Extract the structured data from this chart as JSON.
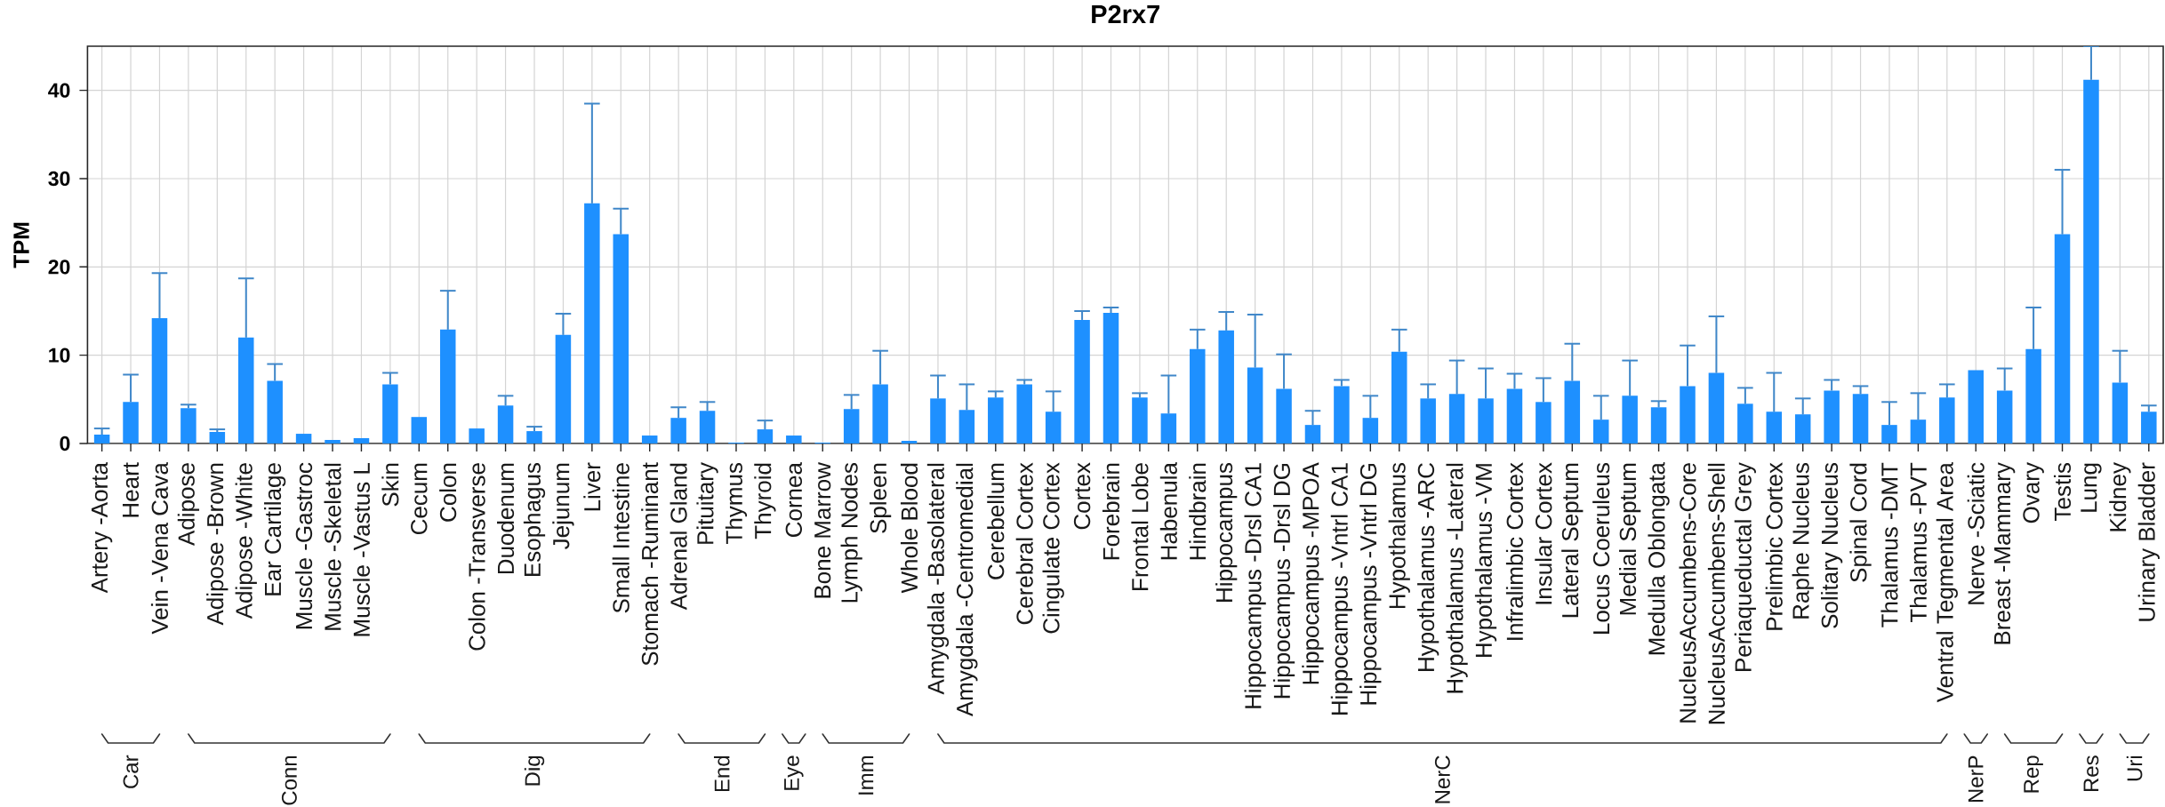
{
  "chart_data": {
    "type": "bar",
    "title": "P2rx7",
    "ylabel": "TPM",
    "categories": [
      "Artery -Aorta",
      "Heart",
      "Vein -Vena Cava",
      "Adipose",
      "Adipose -Brown",
      "Adipose -White",
      "Ear Cartilage",
      "Muscle -Gastroc",
      "Muscle -Skeletal",
      "Muscle -Vastus L",
      "Skin",
      "Cecum",
      "Colon",
      "Colon -Transverse",
      "Duodenum",
      "Esophagus",
      "Jejunum",
      "Liver",
      "Small Intestine",
      "Stomach -Ruminant",
      "Adrenal Gland",
      "Pituitary",
      "Thymus",
      "Thyroid",
      "Cornea",
      "Bone Marrow",
      "Lymph Nodes",
      "Spleen",
      "Whole Blood",
      "Amygdala -Basolateral",
      "Amygdala -Centromedial",
      "Cerebellum",
      "Cerebral Cortex",
      "Cingulate Cortex",
      "Cortex",
      "Forebrain",
      "Frontal Lobe",
      "Habenula",
      "Hindbrain",
      "Hippocampus",
      "Hippocampus -Drsl CA1",
      "Hippocampus -Drsl DG",
      "Hippocampus -MPOA",
      "Hippocampus -Vntrl CA1",
      "Hippocampus -Vntrl DG",
      "Hypothalamus",
      "Hypothalamus -ARC",
      "Hypothalamus -Lateral",
      "Hypothalamus -VM",
      "Infralimbic Cortex",
      "Insular Cortex",
      "Lateral Septum",
      "Locus Coeruleus",
      "Medial Septum",
      "Medulla Oblongata",
      "NucleusAccumbens-Core",
      "NucleusAccumbens-Shell",
      "Periaqueductal Grey",
      "Prelimbic Cortex",
      "Raphe Nucleus",
      "Solitary Nucleus",
      "Spinal Cord",
      "Thalamus -DMT",
      "Thalamus -PVT",
      "Ventral Tegmental Area",
      "Nerve -Sciatic",
      "Breast -Mammary",
      "Ovary",
      "Testis",
      "Lung",
      "Kidney",
      "Urinary Bladder"
    ],
    "values": [
      1.0,
      4.7,
      14.2,
      4.0,
      1.3,
      12.0,
      7.1,
      1.1,
      0.4,
      0.6,
      6.7,
      3.0,
      12.9,
      1.7,
      4.3,
      1.4,
      12.3,
      27.2,
      23.7,
      0.9,
      2.9,
      3.7,
      0.1,
      1.6,
      0.9,
      0.1,
      3.9,
      6.7,
      0.3,
      5.1,
      3.8,
      5.2,
      6.7,
      3.6,
      14.0,
      14.8,
      5.2,
      3.4,
      10.7,
      12.8,
      8.6,
      6.2,
      2.1,
      6.5,
      2.9,
      10.4,
      5.1,
      5.6,
      5.1,
      6.2,
      4.7,
      7.1,
      2.7,
      5.4,
      4.1,
      6.5,
      8.0,
      4.5,
      3.6,
      3.3,
      6.0,
      5.6,
      2.1,
      2.7,
      5.2,
      8.3,
      6.0,
      10.7,
      23.7,
      41.2,
      6.9,
      3.6
    ],
    "errors": [
      [
        1.0,
        1.7
      ],
      [
        4.7,
        7.8
      ],
      [
        14.2,
        19.3
      ],
      [
        4.0,
        4.4
      ],
      [
        1.3,
        1.6
      ],
      [
        12.0,
        18.7
      ],
      [
        7.1,
        9.0
      ],
      null,
      null,
      null,
      [
        6.7,
        8.0
      ],
      null,
      [
        12.9,
        17.3
      ],
      null,
      [
        4.3,
        5.4
      ],
      [
        1.4,
        1.9
      ],
      [
        12.3,
        14.7
      ],
      [
        27.2,
        38.5
      ],
      [
        23.7,
        26.6
      ],
      null,
      [
        2.9,
        4.1
      ],
      [
        3.7,
        4.7
      ],
      null,
      [
        1.6,
        2.6
      ],
      null,
      null,
      [
        3.9,
        5.5
      ],
      [
        6.7,
        10.5
      ],
      null,
      [
        5.1,
        7.7
      ],
      [
        3.8,
        6.7
      ],
      [
        5.2,
        5.9
      ],
      [
        6.7,
        7.2
      ],
      [
        3.6,
        5.9
      ],
      [
        14.0,
        15.0
      ],
      [
        14.8,
        15.4
      ],
      [
        5.2,
        5.7
      ],
      [
        3.4,
        7.7
      ],
      [
        10.7,
        12.9
      ],
      [
        12.8,
        14.9
      ],
      [
        8.6,
        14.6
      ],
      [
        6.2,
        10.1
      ],
      [
        2.1,
        3.7
      ],
      [
        6.5,
        7.2
      ],
      [
        2.9,
        5.4
      ],
      [
        10.4,
        12.9
      ],
      [
        5.1,
        6.7
      ],
      [
        5.6,
        9.4
      ],
      [
        5.1,
        8.5
      ],
      [
        6.2,
        7.9
      ],
      [
        4.7,
        7.4
      ],
      [
        7.1,
        11.3
      ],
      [
        2.7,
        5.4
      ],
      [
        5.4,
        9.4
      ],
      [
        4.1,
        4.8
      ],
      [
        6.5,
        11.1
      ],
      [
        8.0,
        14.4
      ],
      [
        4.5,
        6.3
      ],
      [
        3.6,
        8.0
      ],
      [
        3.3,
        5.1
      ],
      [
        6.0,
        7.2
      ],
      [
        5.6,
        6.5
      ],
      [
        2.1,
        4.7
      ],
      [
        2.7,
        5.7
      ],
      [
        5.2,
        6.7
      ],
      null,
      [
        6.0,
        8.5
      ],
      [
        10.7,
        15.4
      ],
      [
        23.7,
        31.0
      ],
      [
        41.2,
        45
      ],
      [
        6.9,
        10.5
      ],
      [
        3.6,
        4.3
      ]
    ],
    "color": "#1e90ff",
    "ylim": [
      0,
      45
    ],
    "yticks": [
      0,
      10,
      20,
      30,
      40
    ],
    "grid": true,
    "annotations": [
      "Car",
      "Conn",
      "Dig",
      "End",
      "Eye",
      "Imm",
      "NerC",
      "NerP",
      "Rep",
      "Res",
      "Uri"
    ]
  }
}
